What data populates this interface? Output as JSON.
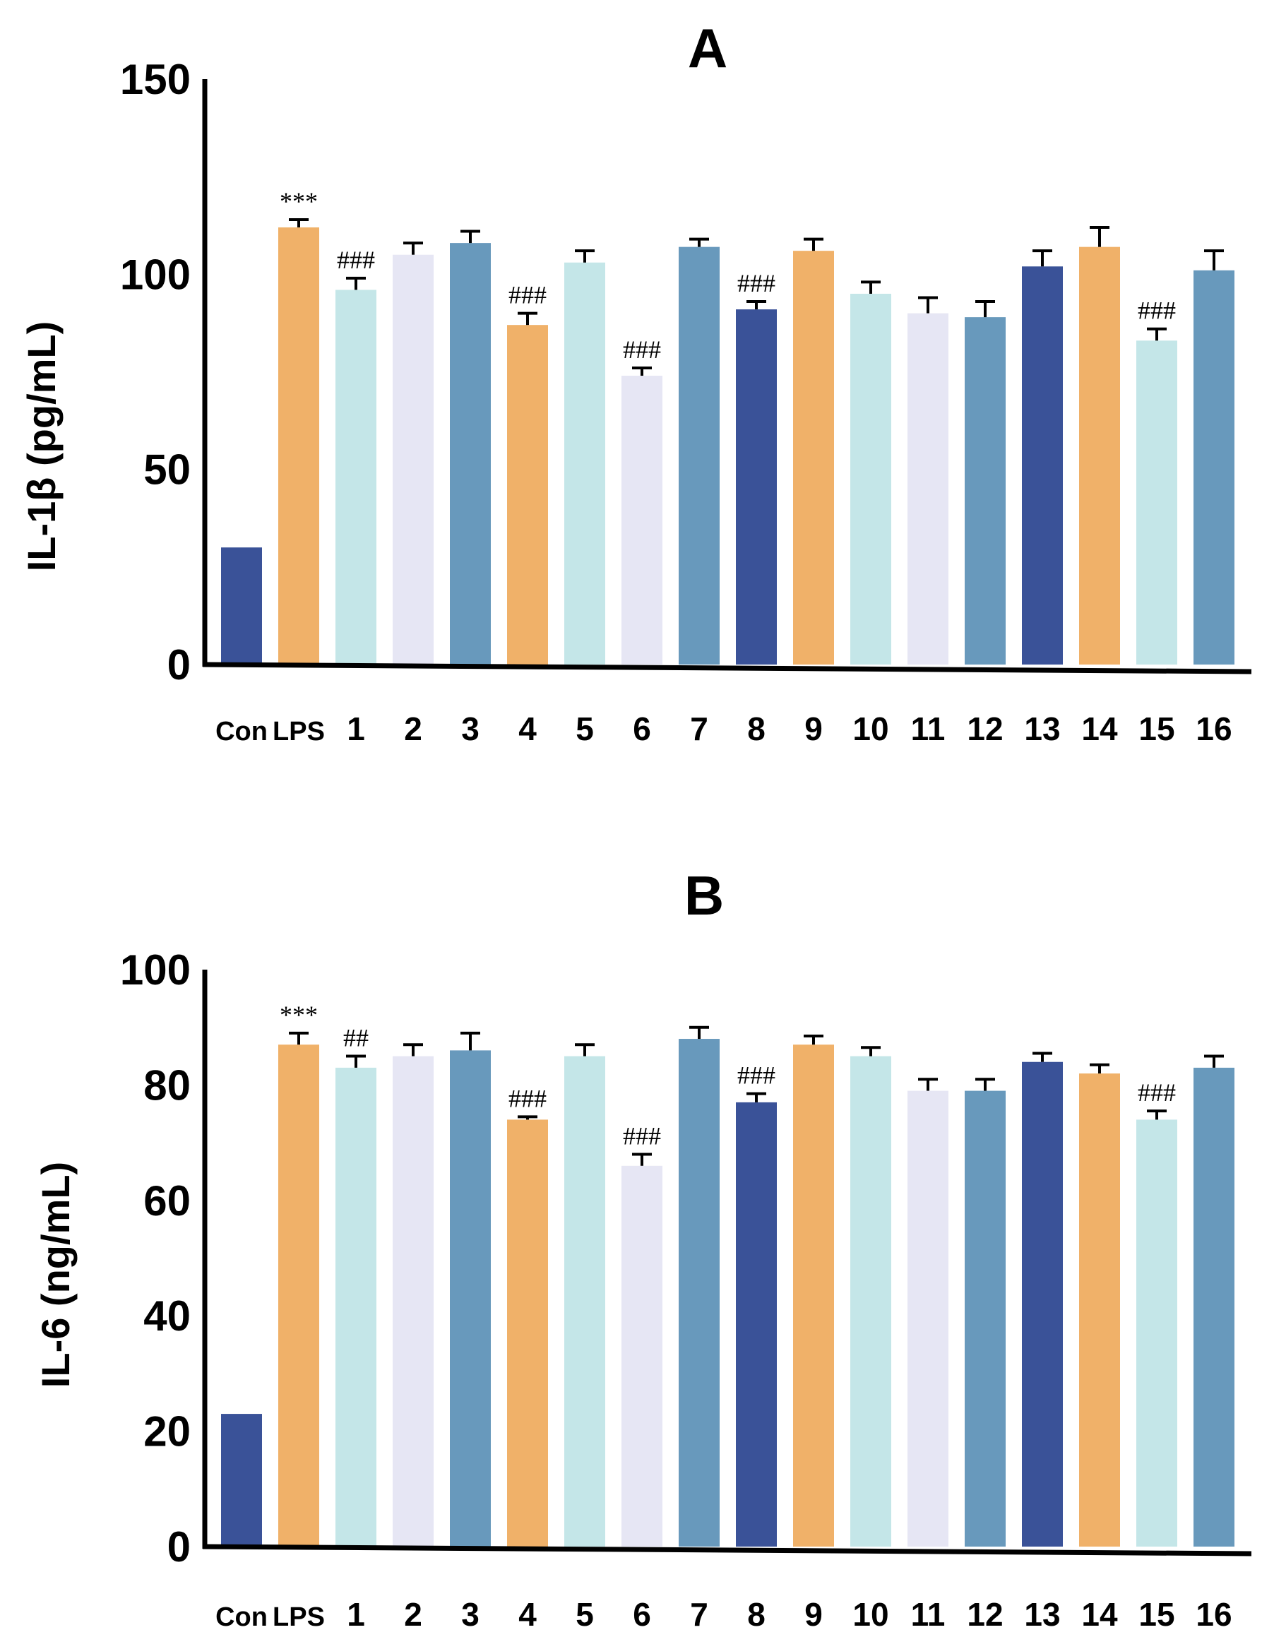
{
  "chart_data": [
    {
      "type": "bar",
      "title": "A",
      "ylabel": "IL-1β (pg/mL)",
      "xlabel": "",
      "ylim": [
        0,
        150
      ],
      "yticks": [
        0,
        50,
        100,
        150
      ],
      "categories": [
        "Con",
        "LPS",
        "1",
        "2",
        "3",
        "4",
        "5",
        "6",
        "7",
        "8",
        "9",
        "10",
        "11",
        "12",
        "13",
        "14",
        "15",
        "16"
      ],
      "values": [
        30,
        112,
        96,
        105,
        108,
        87,
        103,
        74,
        107,
        91,
        106,
        95,
        90,
        89,
        102,
        107,
        83,
        101
      ],
      "errors": [
        0,
        2,
        3,
        3,
        3,
        3,
        3,
        2,
        2,
        2,
        3,
        3,
        4,
        4,
        4,
        5,
        3,
        5
      ],
      "annotations": [
        "",
        "***",
        "###",
        "",
        "",
        "###",
        "",
        "###",
        "",
        "###",
        "",
        "",
        "",
        "",
        "",
        "",
        "###",
        ""
      ],
      "colors": [
        "#3a5298",
        "#f0b169",
        "#c4e6e8",
        "#e6e6f4",
        "#6899bc",
        "#f0b169",
        "#c4e6e8",
        "#e6e6f4",
        "#6899bc",
        "#3a5298",
        "#f0b169",
        "#c4e6e8",
        "#e6e6f4",
        "#6899bc",
        "#3a5298",
        "#f0b169",
        "#c4e6e8",
        "#6899bc"
      ]
    },
    {
      "type": "bar",
      "title": "B",
      "ylabel": "IL-6 (ng/mL)",
      "xlabel": "",
      "ylim": [
        0,
        100
      ],
      "yticks": [
        0,
        20,
        40,
        60,
        80,
        100
      ],
      "categories": [
        "Con",
        "LPS",
        "1",
        "2",
        "3",
        "4",
        "5",
        "6",
        "7",
        "8",
        "9",
        "10",
        "11",
        "12",
        "13",
        "14",
        "15",
        "16"
      ],
      "values": [
        23,
        87,
        83,
        85,
        86,
        74,
        85,
        66,
        88,
        77,
        87,
        85,
        79,
        79,
        84,
        82,
        74,
        83
      ],
      "errors": [
        0,
        2,
        2,
        2,
        3,
        0.5,
        2,
        2,
        2,
        1.5,
        1.5,
        1.5,
        2,
        2,
        1.5,
        1.5,
        1.5,
        2
      ],
      "annotations": [
        "",
        "***",
        "##",
        "",
        "",
        "###",
        "",
        "###",
        "",
        "###",
        "",
        "",
        "",
        "",
        "",
        "",
        "###",
        ""
      ],
      "colors": [
        "#3a5298",
        "#f0b169",
        "#c4e6e8",
        "#e6e6f4",
        "#6899bc",
        "#f0b169",
        "#c4e6e8",
        "#e6e6f4",
        "#6899bc",
        "#3a5298",
        "#f0b169",
        "#c4e6e8",
        "#e6e6f4",
        "#6899bc",
        "#3a5298",
        "#f0b169",
        "#c4e6e8",
        "#6899bc"
      ]
    }
  ]
}
